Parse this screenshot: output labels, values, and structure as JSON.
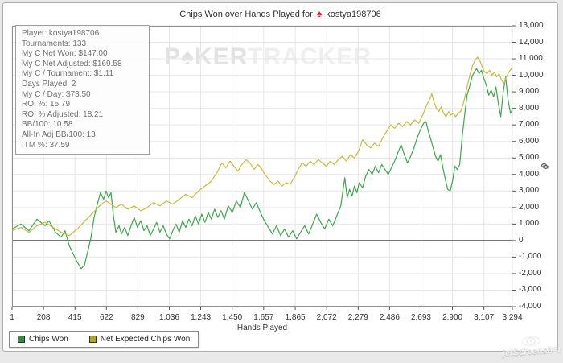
{
  "window": {
    "title_prefix": "Chips Won over Hands Played for",
    "title_player": "kostya198706",
    "spade_icon": "♠"
  },
  "stats_panel": {
    "lines": [
      "Player: kostya198706",
      "Tournaments: 133",
      "My C Net Won: $147.00",
      "My C Net Adjusted: $169.58",
      "My C / Tournament: $1.11",
      "Days Played: 2",
      "My C / Day: $73.50",
      "ROI %: 15.79",
      "ROI % Adjusted: 18.21",
      "BB/100: 10.58",
      "All-In Adj BB/100: 13",
      "ITM %: 37.59"
    ]
  },
  "watermark": {
    "part1": "P",
    "spade": "♠",
    "part2": "KER",
    "part3": "TRACKER"
  },
  "screenshot_watermark": {
    "text": "jetScreenshot"
  },
  "legend": [
    {
      "label": "Chips Won",
      "color": "#2c9236"
    },
    {
      "label": "Net Expected Chips Won",
      "color": "#b1a42c"
    }
  ],
  "colors": {
    "grid": "#e6e6e6",
    "plot_border": "#8f8f8f",
    "zero_line": "#4a4a4a",
    "tick": "#555555",
    "green_line": "#3fa64e",
    "yellow_line": "#c9ba3b"
  },
  "chart_data": {
    "type": "line",
    "title": "Chips Won over Hands Played for kostya198706",
    "xlabel": "Hands Played",
    "ylabel": "chips",
    "xlim": [
      1,
      3294
    ],
    "ylim": [
      -4000,
      13000
    ],
    "y_tick_step": 1000,
    "grid": true,
    "legend_position": "bottom-left",
    "x_ticks": [
      1,
      208,
      415,
      622,
      829,
      1036,
      1243,
      1450,
      1657,
      1865,
      2072,
      2279,
      2486,
      2693,
      2900,
      3107,
      3294
    ],
    "series": [
      {
        "name": "Chips Won",
        "color": "#3fa64e",
        "points": [
          [
            1,
            700
          ],
          [
            59,
            1000
          ],
          [
            112,
            600
          ],
          [
            165,
            1300
          ],
          [
            218,
            900
          ],
          [
            244,
            1200
          ],
          [
            287,
            500
          ],
          [
            324,
            200
          ],
          [
            350,
            600
          ],
          [
            377,
            -300
          ],
          [
            403,
            -800
          ],
          [
            430,
            -1300
          ],
          [
            456,
            -1700
          ],
          [
            477,
            -1500
          ],
          [
            498,
            -700
          ],
          [
            519,
            100
          ],
          [
            541,
            1400
          ],
          [
            562,
            2200
          ],
          [
            583,
            2900
          ],
          [
            604,
            2500
          ],
          [
            620,
            3000
          ],
          [
            636,
            2600
          ],
          [
            652,
            2900
          ],
          [
            668,
            1500
          ],
          [
            684,
            500
          ],
          [
            705,
            900
          ],
          [
            721,
            400
          ],
          [
            742,
            800
          ],
          [
            763,
            300
          ],
          [
            784,
            900
          ],
          [
            805,
            1400
          ],
          [
            826,
            800
          ],
          [
            848,
            1200
          ],
          [
            869,
            600
          ],
          [
            890,
            900
          ],
          [
            911,
            300
          ],
          [
            932,
            700
          ],
          [
            953,
            1100
          ],
          [
            974,
            500
          ],
          [
            996,
            900
          ],
          [
            1017,
            400
          ],
          [
            1038,
            100
          ],
          [
            1059,
            600
          ],
          [
            1080,
            1000
          ],
          [
            1101,
            500
          ],
          [
            1123,
            1200
          ],
          [
            1144,
            800
          ],
          [
            1165,
            1300
          ],
          [
            1186,
            900
          ],
          [
            1207,
            1500
          ],
          [
            1228,
            1000
          ],
          [
            1250,
            1600
          ],
          [
            1271,
            1100
          ],
          [
            1292,
            1700
          ],
          [
            1313,
            1300
          ],
          [
            1334,
            1900
          ],
          [
            1355,
            1400
          ],
          [
            1377,
            1800
          ],
          [
            1398,
            1300
          ],
          [
            1424,
            2100
          ],
          [
            1451,
            1700
          ],
          [
            1477,
            2400
          ],
          [
            1504,
            2000
          ],
          [
            1530,
            2900
          ],
          [
            1557,
            2400
          ],
          [
            1583,
            1900
          ],
          [
            1609,
            2300
          ],
          [
            1636,
            1700
          ],
          [
            1662,
            1200
          ],
          [
            1689,
            800
          ],
          [
            1715,
            400
          ],
          [
            1742,
            900
          ],
          [
            1768,
            300
          ],
          [
            1795,
            700
          ],
          [
            1821,
            200
          ],
          [
            1848,
            600
          ],
          [
            1874,
            100
          ],
          [
            1900,
            500
          ],
          [
            1927,
            900
          ],
          [
            1953,
            400
          ],
          [
            1980,
            1000
          ],
          [
            2006,
            1600
          ],
          [
            2033,
            1100
          ],
          [
            2059,
            700
          ],
          [
            2086,
            1300
          ],
          [
            2112,
            900
          ],
          [
            2139,
            1500
          ],
          [
            2165,
            2100
          ],
          [
            2191,
            3800
          ],
          [
            2207,
            2600
          ],
          [
            2223,
            3100
          ],
          [
            2239,
            2700
          ],
          [
            2255,
            3300
          ],
          [
            2271,
            2900
          ],
          [
            2286,
            3500
          ],
          [
            2308,
            3200
          ],
          [
            2329,
            3900
          ],
          [
            2350,
            4300
          ],
          [
            2371,
            4000
          ],
          [
            2392,
            4500
          ],
          [
            2413,
            4100
          ],
          [
            2435,
            4600
          ],
          [
            2456,
            4300
          ],
          [
            2477,
            4000
          ],
          [
            2498,
            4400
          ],
          [
            2519,
            4800
          ],
          [
            2540,
            5300
          ],
          [
            2562,
            5800
          ],
          [
            2583,
            5200
          ],
          [
            2604,
            4700
          ],
          [
            2625,
            5100
          ],
          [
            2646,
            5600
          ],
          [
            2667,
            6200
          ],
          [
            2689,
            6700
          ],
          [
            2710,
            7100
          ],
          [
            2726,
            7200
          ],
          [
            2742,
            6600
          ],
          [
            2758,
            6100
          ],
          [
            2773,
            5600
          ],
          [
            2789,
            5100
          ],
          [
            2805,
            4800
          ],
          [
            2821,
            5200
          ],
          [
            2837,
            4400
          ],
          [
            2853,
            3700
          ],
          [
            2869,
            3100
          ],
          [
            2885,
            3000
          ],
          [
            2900,
            3600
          ],
          [
            2916,
            4500
          ],
          [
            2932,
            4300
          ],
          [
            2948,
            4600
          ],
          [
            2964,
            6300
          ],
          [
            2980,
            7600
          ],
          [
            2996,
            8800
          ],
          [
            3012,
            9300
          ],
          [
            3028,
            9900
          ],
          [
            3043,
            10200
          ],
          [
            3059,
            10400
          ],
          [
            3075,
            10100
          ],
          [
            3091,
            10300
          ],
          [
            3107,
            9800
          ],
          [
            3123,
            9400
          ],
          [
            3139,
            8800
          ],
          [
            3155,
            9100
          ],
          [
            3171,
            8700
          ],
          [
            3186,
            9300
          ],
          [
            3202,
            8300
          ],
          [
            3218,
            7500
          ],
          [
            3234,
            9000
          ],
          [
            3250,
            9900
          ],
          [
            3266,
            8500
          ],
          [
            3282,
            7700
          ],
          [
            3294,
            7900
          ]
        ]
      },
      {
        "name": "Net Expected Chips Won",
        "color": "#c9ba3b",
        "points": [
          [
            1,
            600
          ],
          [
            59,
            800
          ],
          [
            112,
            500
          ],
          [
            165,
            900
          ],
          [
            218,
            1100
          ],
          [
            271,
            800
          ],
          [
            324,
            500
          ],
          [
            377,
            300
          ],
          [
            430,
            700
          ],
          [
            482,
            1200
          ],
          [
            535,
            1700
          ],
          [
            588,
            2200
          ],
          [
            620,
            2400
          ],
          [
            652,
            2200
          ],
          [
            684,
            2000
          ],
          [
            721,
            2200
          ],
          [
            763,
            1900
          ],
          [
            805,
            2100
          ],
          [
            848,
            1800
          ],
          [
            890,
            2000
          ],
          [
            932,
            2300
          ],
          [
            974,
            2100
          ],
          [
            1017,
            2400
          ],
          [
            1059,
            2200
          ],
          [
            1101,
            2500
          ],
          [
            1144,
            2800
          ],
          [
            1186,
            2600
          ],
          [
            1228,
            3000
          ],
          [
            1271,
            3300
          ],
          [
            1313,
            3600
          ],
          [
            1355,
            4200
          ],
          [
            1382,
            4700
          ],
          [
            1408,
            4400
          ],
          [
            1435,
            4800
          ],
          [
            1461,
            4500
          ],
          [
            1488,
            4200
          ],
          [
            1514,
            4600
          ],
          [
            1540,
            4900
          ],
          [
            1567,
            4700
          ],
          [
            1593,
            4300
          ],
          [
            1620,
            4600
          ],
          [
            1646,
            4300
          ],
          [
            1673,
            3900
          ],
          [
            1699,
            3600
          ],
          [
            1726,
            3400
          ],
          [
            1752,
            3600
          ],
          [
            1779,
            3300
          ],
          [
            1805,
            3500
          ],
          [
            1831,
            3400
          ],
          [
            1858,
            3800
          ],
          [
            1884,
            4300
          ],
          [
            1911,
            4700
          ],
          [
            1937,
            4500
          ],
          [
            1964,
            4800
          ],
          [
            1990,
            4600
          ],
          [
            2017,
            4900
          ],
          [
            2043,
            4700
          ],
          [
            2070,
            4500
          ],
          [
            2096,
            4800
          ],
          [
            2122,
            4600
          ],
          [
            2149,
            4900
          ],
          [
            2175,
            5100
          ],
          [
            2202,
            4800
          ],
          [
            2228,
            5200
          ],
          [
            2255,
            5000
          ],
          [
            2281,
            5400
          ],
          [
            2308,
            6100
          ],
          [
            2334,
            5800
          ],
          [
            2361,
            5600
          ],
          [
            2387,
            5900
          ],
          [
            2413,
            5700
          ],
          [
            2440,
            6200
          ],
          [
            2466,
            6600
          ],
          [
            2493,
            7000
          ],
          [
            2519,
            6800
          ],
          [
            2546,
            7100
          ],
          [
            2572,
            6900
          ],
          [
            2598,
            7200
          ],
          [
            2625,
            7000
          ],
          [
            2651,
            7300
          ],
          [
            2678,
            7100
          ],
          [
            2704,
            7600
          ],
          [
            2731,
            8200
          ],
          [
            2757,
            8700
          ],
          [
            2763,
            8900
          ],
          [
            2778,
            8400
          ],
          [
            2794,
            8000
          ],
          [
            2810,
            7800
          ],
          [
            2826,
            8100
          ],
          [
            2842,
            7700
          ],
          [
            2858,
            7500
          ],
          [
            2874,
            7800
          ],
          [
            2890,
            7600
          ],
          [
            2905,
            7700
          ],
          [
            2921,
            7500
          ],
          [
            2937,
            7700
          ],
          [
            2953,
            7800
          ],
          [
            2969,
            8200
          ],
          [
            2985,
            8800
          ],
          [
            3001,
            9500
          ],
          [
            3017,
            10100
          ],
          [
            3033,
            10600
          ],
          [
            3048,
            10900
          ],
          [
            3064,
            11100
          ],
          [
            3080,
            10900
          ],
          [
            3096,
            10500
          ],
          [
            3112,
            10200
          ],
          [
            3128,
            10100
          ],
          [
            3144,
            10300
          ],
          [
            3160,
            10000
          ],
          [
            3176,
            10200
          ],
          [
            3191,
            9900
          ],
          [
            3207,
            10100
          ],
          [
            3223,
            9700
          ],
          [
            3239,
            9500
          ],
          [
            3255,
            9900
          ],
          [
            3271,
            10200
          ],
          [
            3287,
            10400
          ],
          [
            3294,
            10400
          ]
        ]
      }
    ]
  }
}
